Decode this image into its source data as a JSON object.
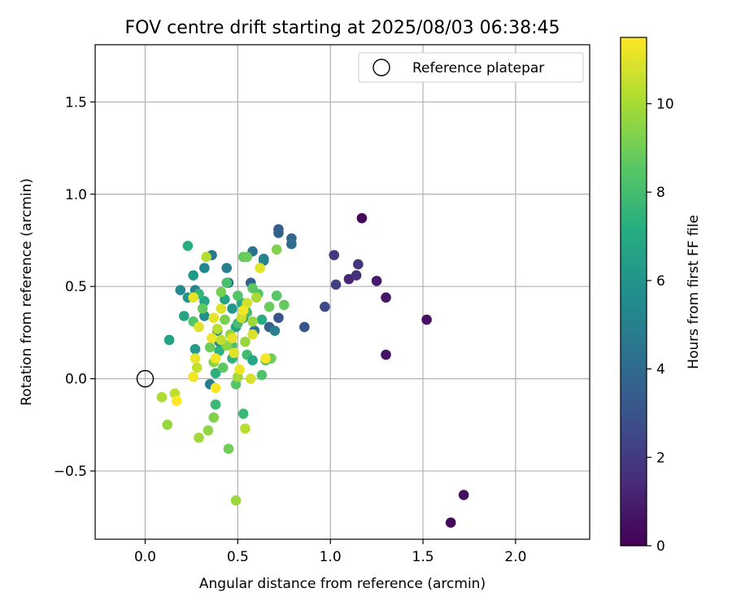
{
  "chart_data": {
    "type": "scatter",
    "title": "FOV centre drift starting at 2025/08/03 06:38:45",
    "xlabel": "Angular distance from reference (arcmin)",
    "ylabel": "Rotation from reference (arcmin)",
    "xlim": [
      -0.27,
      2.4
    ],
    "ylim": [
      -0.87,
      1.81
    ],
    "xticks": [
      0.0,
      0.5,
      1.0,
      1.5,
      2.0
    ],
    "xtick_labels": [
      "0.0",
      "0.5",
      "1.0",
      "1.5",
      "2.0"
    ],
    "yticks": [
      -0.5,
      0.0,
      0.5,
      1.0,
      1.5
    ],
    "ytick_labels": [
      "−0.5",
      "0.0",
      "0.5",
      "1.0",
      "1.5"
    ],
    "grid": true,
    "legend": {
      "position": "top-right",
      "entries": [
        {
          "label": "Reference platepar",
          "marker": "open-circle"
        }
      ]
    },
    "reference_point": {
      "x": 0.0,
      "y": 0.0
    },
    "colorbar": {
      "label": "Hours from first FF file",
      "colormap": "viridis",
      "range": [
        0,
        11.5
      ],
      "ticks": [
        0,
        2,
        4,
        6,
        8,
        10
      ],
      "tick_labels": [
        "0",
        "2",
        "4",
        "6",
        "8",
        "10"
      ]
    },
    "points": [
      {
        "x": 1.17,
        "y": 0.87,
        "c": 0.2
      },
      {
        "x": 1.65,
        "y": -0.78,
        "c": 0.3
      },
      {
        "x": 1.72,
        "y": -0.63,
        "c": 0.4
      },
      {
        "x": 1.52,
        "y": 0.32,
        "c": 0.5
      },
      {
        "x": 1.3,
        "y": 0.13,
        "c": 0.6
      },
      {
        "x": 1.3,
        "y": 0.44,
        "c": 0.7
      },
      {
        "x": 1.25,
        "y": 0.53,
        "c": 0.9
      },
      {
        "x": 1.1,
        "y": 0.54,
        "c": 1.3
      },
      {
        "x": 1.14,
        "y": 0.56,
        "c": 1.6
      },
      {
        "x": 1.15,
        "y": 0.62,
        "c": 1.8
      },
      {
        "x": 1.02,
        "y": 0.67,
        "c": 2.0
      },
      {
        "x": 1.03,
        "y": 0.51,
        "c": 2.2
      },
      {
        "x": 0.97,
        "y": 0.39,
        "c": 2.6
      },
      {
        "x": 0.86,
        "y": 0.28,
        "c": 3.1
      },
      {
        "x": 0.72,
        "y": 0.33,
        "c": 3.0
      },
      {
        "x": 0.72,
        "y": 0.81,
        "c": 3.4
      },
      {
        "x": 0.72,
        "y": 0.79,
        "c": 3.6
      },
      {
        "x": 0.79,
        "y": 0.76,
        "c": 3.8
      },
      {
        "x": 0.79,
        "y": 0.73,
        "c": 4.1
      },
      {
        "x": 0.67,
        "y": 0.28,
        "c": 3.4
      },
      {
        "x": 0.57,
        "y": 0.52,
        "c": 3.7
      },
      {
        "x": 0.58,
        "y": 0.69,
        "c": 4.3
      },
      {
        "x": 0.59,
        "y": 0.26,
        "c": 4.5
      },
      {
        "x": 0.64,
        "y": 0.64,
        "c": 4.7
      },
      {
        "x": 0.7,
        "y": 0.26,
        "c": 4.9
      },
      {
        "x": 0.64,
        "y": 0.65,
        "c": 5.2
      },
      {
        "x": 0.36,
        "y": 0.67,
        "c": 4.6
      },
      {
        "x": 0.44,
        "y": 0.6,
        "c": 5.0
      },
      {
        "x": 0.45,
        "y": 0.52,
        "c": 4.4
      },
      {
        "x": 0.19,
        "y": 0.48,
        "c": 5.5
      },
      {
        "x": 0.27,
        "y": 0.48,
        "c": 5.2
      },
      {
        "x": 0.32,
        "y": 0.6,
        "c": 5.3
      },
      {
        "x": 0.35,
        "y": -0.03,
        "c": 4.8
      },
      {
        "x": 0.26,
        "y": 0.56,
        "c": 6.2
      },
      {
        "x": 0.23,
        "y": 0.44,
        "c": 6.0
      },
      {
        "x": 0.27,
        "y": 0.16,
        "c": 6.3
      },
      {
        "x": 0.13,
        "y": 0.21,
        "c": 6.6
      },
      {
        "x": 0.23,
        "y": 0.72,
        "c": 7.2
      },
      {
        "x": 0.21,
        "y": 0.34,
        "c": 6.8
      },
      {
        "x": 0.32,
        "y": 0.34,
        "c": 5.7
      },
      {
        "x": 0.39,
        "y": 0.26,
        "c": 5.9
      },
      {
        "x": 0.43,
        "y": 0.43,
        "c": 6.7
      },
      {
        "x": 0.47,
        "y": 0.38,
        "c": 6.1
      },
      {
        "x": 0.52,
        "y": 0.41,
        "c": 7.1
      },
      {
        "x": 0.49,
        "y": 0.28,
        "c": 6.5
      },
      {
        "x": 0.53,
        "y": 0.33,
        "c": 6.4
      },
      {
        "x": 0.4,
        "y": 0.2,
        "c": 5.6
      },
      {
        "x": 0.4,
        "y": 0.15,
        "c": 7.4
      },
      {
        "x": 0.32,
        "y": 0.42,
        "c": 7.0
      },
      {
        "x": 0.29,
        "y": 0.46,
        "c": 7.6
      },
      {
        "x": 0.38,
        "y": 0.03,
        "c": 7.3
      },
      {
        "x": 0.38,
        "y": -0.14,
        "c": 7.8
      },
      {
        "x": 0.47,
        "y": 0.11,
        "c": 7.5
      },
      {
        "x": 0.53,
        "y": -0.19,
        "c": 7.7
      },
      {
        "x": 0.55,
        "y": 0.13,
        "c": 7.9
      },
      {
        "x": 0.58,
        "y": 0.1,
        "c": 6.9
      },
      {
        "x": 0.63,
        "y": 0.32,
        "c": 7.2
      },
      {
        "x": 0.65,
        "y": 0.1,
        "c": 8.2
      },
      {
        "x": 0.63,
        "y": 0.02,
        "c": 8.3
      },
      {
        "x": 0.44,
        "y": 0.52,
        "c": 8.1
      },
      {
        "x": 0.5,
        "y": 0.45,
        "c": 8.4
      },
      {
        "x": 0.53,
        "y": 0.66,
        "c": 8.7
      },
      {
        "x": 0.55,
        "y": 0.36,
        "c": 8.0
      },
      {
        "x": 0.58,
        "y": 0.49,
        "c": 8.6
      },
      {
        "x": 0.61,
        "y": 0.46,
        "c": 8.3
      },
      {
        "x": 0.67,
        "y": 0.39,
        "c": 8.9
      },
      {
        "x": 0.71,
        "y": 0.45,
        "c": 8.5
      },
      {
        "x": 0.75,
        "y": 0.4,
        "c": 8.8
      },
      {
        "x": 0.71,
        "y": 0.7,
        "c": 9.3
      },
      {
        "x": 0.68,
        "y": 0.11,
        "c": 9.0
      },
      {
        "x": 0.55,
        "y": 0.66,
        "c": 8.9
      },
      {
        "x": 0.26,
        "y": 0.31,
        "c": 8.4
      },
      {
        "x": 0.31,
        "y": 0.38,
        "c": 8.7
      },
      {
        "x": 0.35,
        "y": 0.17,
        "c": 8.9
      },
      {
        "x": 0.42,
        "y": 0.06,
        "c": 8.6
      },
      {
        "x": 0.47,
        "y": 0.18,
        "c": 8.2
      },
      {
        "x": 0.49,
        "y": -0.03,
        "c": 8.4
      },
      {
        "x": 0.5,
        "y": 0.3,
        "c": 8.0
      },
      {
        "x": 0.41,
        "y": 0.47,
        "c": 9.1
      },
      {
        "x": 0.43,
        "y": 0.32,
        "c": 9.2
      },
      {
        "x": 0.37,
        "y": 0.09,
        "c": 9.4
      },
      {
        "x": 0.45,
        "y": -0.38,
        "c": 9.0
      },
      {
        "x": 0.37,
        "y": -0.21,
        "c": 9.3
      },
      {
        "x": 0.34,
        "y": -0.28,
        "c": 9.6
      },
      {
        "x": 0.29,
        "y": -0.32,
        "c": 9.9
      },
      {
        "x": 0.12,
        "y": -0.25,
        "c": 9.7
      },
      {
        "x": 0.09,
        "y": -0.1,
        "c": 10.1
      },
      {
        "x": 0.16,
        "y": -0.08,
        "c": 10.4
      },
      {
        "x": 0.49,
        "y": -0.66,
        "c": 9.8
      },
      {
        "x": 0.54,
        "y": -0.27,
        "c": 10.3
      },
      {
        "x": 0.44,
        "y": 0.18,
        "c": 9.5
      },
      {
        "x": 0.46,
        "y": 0.24,
        "c": 9.6
      },
      {
        "x": 0.5,
        "y": 0.01,
        "c": 9.9
      },
      {
        "x": 0.54,
        "y": 0.2,
        "c": 9.7
      },
      {
        "x": 0.58,
        "y": 0.31,
        "c": 9.8
      },
      {
        "x": 0.6,
        "y": 0.44,
        "c": 10.0
      },
      {
        "x": 0.33,
        "y": 0.66,
        "c": 10.2
      },
      {
        "x": 0.28,
        "y": 0.06,
        "c": 10.5
      },
      {
        "x": 0.39,
        "y": 0.27,
        "c": 10.3
      },
      {
        "x": 0.41,
        "y": 0.21,
        "c": 10.4
      },
      {
        "x": 0.52,
        "y": 0.33,
        "c": 10.6
      },
      {
        "x": 0.55,
        "y": 0.41,
        "c": 10.7
      },
      {
        "x": 0.57,
        "y": 0.0,
        "c": 10.8
      },
      {
        "x": 0.58,
        "y": 0.24,
        "c": 10.9
      },
      {
        "x": 0.62,
        "y": 0.6,
        "c": 11.0
      },
      {
        "x": 0.26,
        "y": 0.44,
        "c": 11.1
      },
      {
        "x": 0.29,
        "y": 0.28,
        "c": 11.0
      },
      {
        "x": 0.27,
        "y": 0.11,
        "c": 11.2
      },
      {
        "x": 0.26,
        "y": 0.01,
        "c": 11.3
      },
      {
        "x": 0.37,
        "y": 0.33,
        "c": 11.1
      },
      {
        "x": 0.36,
        "y": 0.22,
        "c": 11.2
      },
      {
        "x": 0.38,
        "y": 0.11,
        "c": 11.3
      },
      {
        "x": 0.38,
        "y": -0.05,
        "c": 11.4
      },
      {
        "x": 0.47,
        "y": 0.22,
        "c": 11.1
      },
      {
        "x": 0.51,
        "y": 0.05,
        "c": 11.2
      },
      {
        "x": 0.53,
        "y": 0.37,
        "c": 11.3
      },
      {
        "x": 0.65,
        "y": 0.11,
        "c": 11.4
      },
      {
        "x": 0.17,
        "y": -0.12,
        "c": 11.5
      },
      {
        "x": 0.48,
        "y": 0.14,
        "c": 11.0
      },
      {
        "x": 0.41,
        "y": 0.38,
        "c": 10.9
      }
    ]
  }
}
